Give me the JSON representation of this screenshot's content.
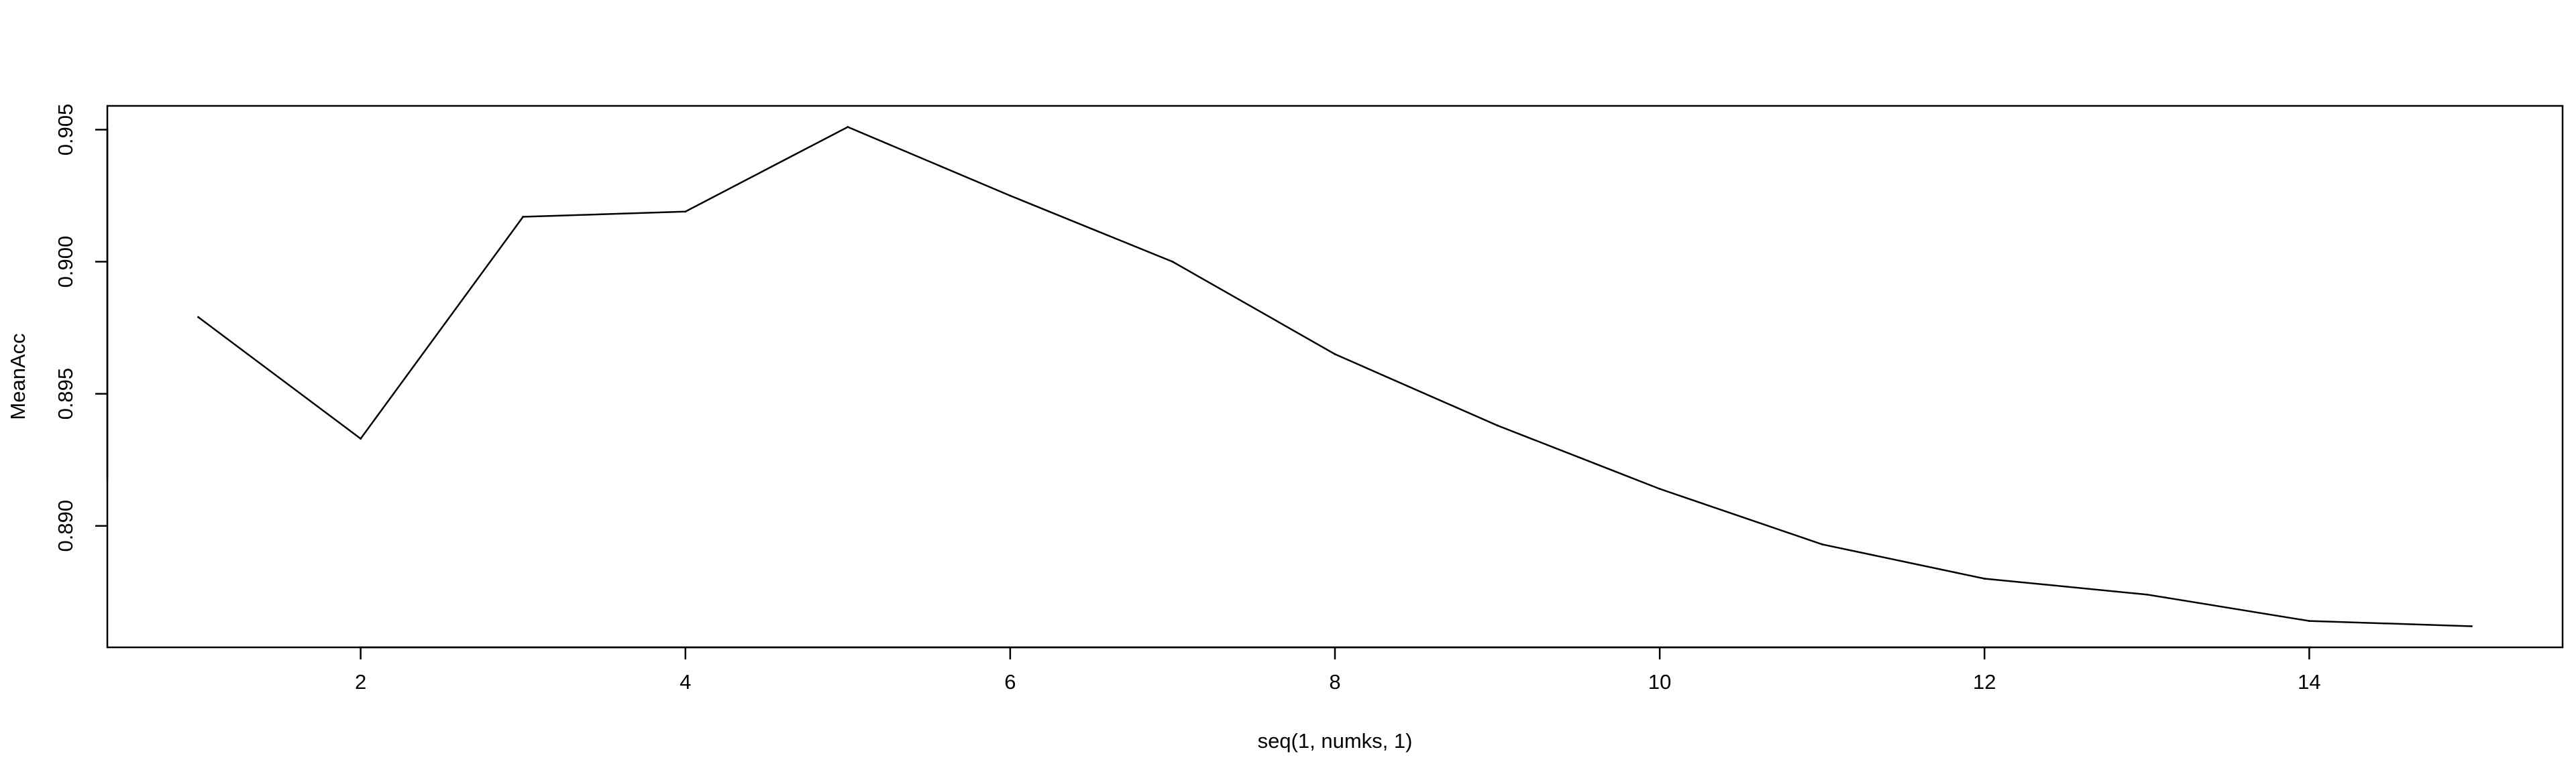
{
  "chart_data": {
    "type": "line",
    "title": "",
    "xlabel": "seq(1, numks, 1)",
    "ylabel": "MeanAcc",
    "x": [
      1,
      2,
      3,
      4,
      5,
      6,
      7,
      8,
      9,
      10,
      11,
      12,
      13,
      14,
      15
    ],
    "series": [
      {
        "values": [
          0.8979,
          0.8933,
          0.9017,
          0.9019,
          0.9051,
          0.9025,
          0.9,
          0.8965,
          0.8938,
          0.8914,
          0.8893,
          0.888,
          0.8874,
          0.8864,
          0.8862
        ],
        "color": "#000000"
      }
    ],
    "xlim": [
      0.44,
      15.56
    ],
    "ylim": [
      0.8854,
      0.9059
    ],
    "x_ticks": [
      "2",
      "4",
      "6",
      "8",
      "10",
      "12",
      "14"
    ],
    "y_ticks": [
      "0.890",
      "0.895",
      "0.900",
      "0.905"
    ],
    "grid": false,
    "legend": "none"
  }
}
